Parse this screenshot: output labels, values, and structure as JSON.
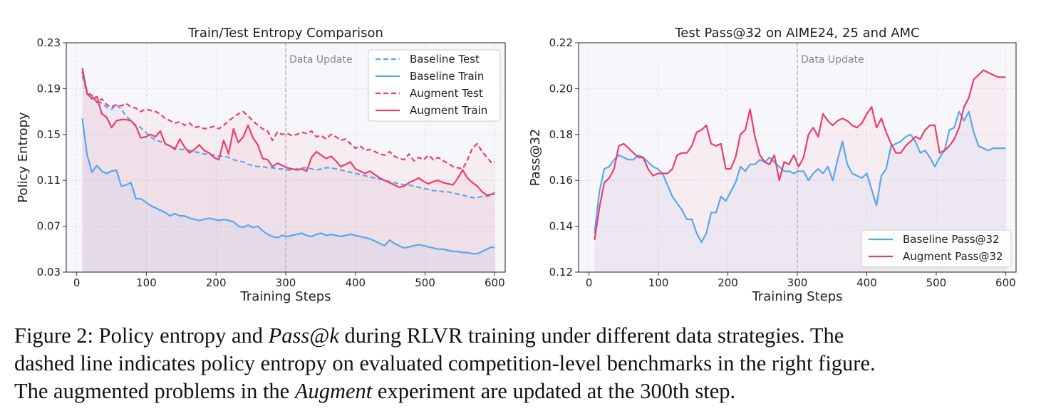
{
  "chart_data": [
    {
      "type": "line",
      "title": "Train/Test Entropy Comparison",
      "xlabel": "Training Steps",
      "ylabel": "Policy Entropy",
      "xlim": [
        -15,
        615
      ],
      "ylim": [
        0.03,
        0.23
      ],
      "xticks": [
        0,
        100,
        200,
        300,
        400,
        500,
        600
      ],
      "yticks": [
        "0.03",
        "0.07",
        "0.11",
        "0.15",
        "0.19",
        "0.23"
      ],
      "grid": true,
      "annotation": {
        "text": "Data Update",
        "x": 300
      },
      "legend_position": "top-right",
      "x": [
        8,
        15,
        22,
        29,
        36,
        43,
        50,
        57,
        64,
        71,
        78,
        85,
        92,
        99,
        106,
        113,
        120,
        127,
        134,
        141,
        148,
        155,
        162,
        169,
        176,
        183,
        190,
        197,
        204,
        211,
        218,
        225,
        232,
        239,
        246,
        253,
        260,
        267,
        274,
        281,
        288,
        295,
        302,
        309,
        316,
        323,
        330,
        337,
        344,
        351,
        358,
        365,
        372,
        379,
        386,
        393,
        400,
        407,
        414,
        421,
        428,
        435,
        442,
        449,
        456,
        463,
        470,
        477,
        484,
        491,
        498,
        505,
        512,
        519,
        526,
        533,
        540,
        547,
        554,
        561,
        568,
        575,
        582,
        589,
        596,
        600
      ],
      "series": [
        {
          "name": "Baseline Test",
          "color": "#5aa7ea",
          "style": "dashed",
          "values": [
            0.201,
            0.185,
            0.182,
            0.18,
            0.177,
            0.174,
            0.172,
            0.176,
            0.172,
            0.166,
            0.162,
            0.158,
            0.156,
            0.152,
            0.148,
            0.145,
            0.144,
            0.142,
            0.14,
            0.138,
            0.137,
            0.137,
            0.136,
            0.135,
            0.134,
            0.133,
            0.133,
            0.132,
            0.131,
            0.131,
            0.13,
            0.128,
            0.127,
            0.126,
            0.124,
            0.123,
            0.122,
            0.122,
            0.121,
            0.121,
            0.12,
            0.12,
            0.119,
            0.119,
            0.12,
            0.121,
            0.121,
            0.12,
            0.119,
            0.12,
            0.121,
            0.121,
            0.12,
            0.119,
            0.118,
            0.117,
            0.116,
            0.115,
            0.114,
            0.113,
            0.112,
            0.111,
            0.11,
            0.109,
            0.108,
            0.107,
            0.106,
            0.106,
            0.105,
            0.104,
            0.103,
            0.102,
            0.101,
            0.101,
            0.1,
            0.1,
            0.099,
            0.098,
            0.097,
            0.096,
            0.095,
            0.095,
            0.096,
            0.096,
            0.097,
            0.1
          ]
        },
        {
          "name": "Baseline Train",
          "color": "#5aa7ea",
          "style": "solid",
          "values": [
            0.164,
            0.132,
            0.117,
            0.123,
            0.118,
            0.116,
            0.118,
            0.119,
            0.105,
            0.106,
            0.108,
            0.094,
            0.094,
            0.091,
            0.088,
            0.086,
            0.084,
            0.082,
            0.079,
            0.081,
            0.079,
            0.079,
            0.077,
            0.076,
            0.075,
            0.076,
            0.077,
            0.076,
            0.075,
            0.076,
            0.075,
            0.074,
            0.07,
            0.069,
            0.071,
            0.069,
            0.07,
            0.066,
            0.063,
            0.061,
            0.06,
            0.062,
            0.061,
            0.062,
            0.063,
            0.064,
            0.062,
            0.061,
            0.063,
            0.064,
            0.062,
            0.063,
            0.062,
            0.061,
            0.062,
            0.063,
            0.062,
            0.061,
            0.06,
            0.059,
            0.057,
            0.055,
            0.053,
            0.058,
            0.055,
            0.053,
            0.051,
            0.052,
            0.053,
            0.054,
            0.053,
            0.052,
            0.051,
            0.05,
            0.05,
            0.049,
            0.048,
            0.048,
            0.047,
            0.047,
            0.046,
            0.046,
            0.048,
            0.05,
            0.052,
            0.051
          ]
        },
        {
          "name": "Augment Test",
          "color": "#ec3e6a",
          "style": "dashed",
          "values": [
            0.205,
            0.187,
            0.184,
            0.178,
            0.181,
            0.176,
            0.174,
            0.176,
            0.175,
            0.177,
            0.174,
            0.173,
            0.17,
            0.172,
            0.171,
            0.17,
            0.168,
            0.164,
            0.162,
            0.16,
            0.161,
            0.158,
            0.16,
            0.156,
            0.157,
            0.155,
            0.156,
            0.157,
            0.155,
            0.158,
            0.162,
            0.165,
            0.168,
            0.17,
            0.166,
            0.162,
            0.158,
            0.155,
            0.153,
            0.145,
            0.152,
            0.15,
            0.151,
            0.149,
            0.15,
            0.152,
            0.151,
            0.153,
            0.148,
            0.149,
            0.146,
            0.15,
            0.148,
            0.145,
            0.146,
            0.142,
            0.138,
            0.14,
            0.136,
            0.137,
            0.135,
            0.133,
            0.132,
            0.135,
            0.131,
            0.129,
            0.128,
            0.133,
            0.127,
            0.13,
            0.128,
            0.132,
            0.128,
            0.13,
            0.127,
            0.125,
            0.122,
            0.121,
            0.12,
            0.128,
            0.138,
            0.142,
            0.135,
            0.13,
            0.125,
            0.126
          ]
        },
        {
          "name": "Augment Train",
          "color": "#ec3e6a",
          "style": "solid",
          "values": [
            0.208,
            0.186,
            0.181,
            0.183,
            0.168,
            0.165,
            0.156,
            0.162,
            0.163,
            0.163,
            0.162,
            0.157,
            0.147,
            0.148,
            0.15,
            0.148,
            0.153,
            0.142,
            0.14,
            0.137,
            0.146,
            0.139,
            0.134,
            0.137,
            0.141,
            0.136,
            0.134,
            0.13,
            0.128,
            0.145,
            0.133,
            0.155,
            0.143,
            0.148,
            0.158,
            0.147,
            0.141,
            0.129,
            0.128,
            0.122,
            0.125,
            0.123,
            0.121,
            0.12,
            0.119,
            0.12,
            0.118,
            0.13,
            0.135,
            0.132,
            0.129,
            0.131,
            0.127,
            0.122,
            0.124,
            0.126,
            0.12,
            0.118,
            0.116,
            0.118,
            0.115,
            0.112,
            0.11,
            0.108,
            0.106,
            0.104,
            0.105,
            0.108,
            0.11,
            0.112,
            0.109,
            0.107,
            0.109,
            0.11,
            0.108,
            0.107,
            0.106,
            0.112,
            0.119,
            0.112,
            0.108,
            0.105,
            0.1,
            0.097,
            0.098,
            0.098
          ]
        }
      ]
    },
    {
      "type": "line",
      "title": "Test Pass@32 on AIME24, 25 and AMC",
      "xlabel": "Training Steps",
      "ylabel": "Pass@32",
      "xlim": [
        -15,
        615
      ],
      "ylim": [
        0.12,
        0.22
      ],
      "xticks": [
        0,
        100,
        200,
        300,
        400,
        500,
        600
      ],
      "yticks": [
        "0.12",
        "0.14",
        "0.16",
        "0.18",
        "0.20",
        "0.22"
      ],
      "grid": true,
      "annotation": {
        "text": "Data Update",
        "x": 300
      },
      "legend_position": "bottom-right",
      "x": [
        8,
        15,
        22,
        29,
        36,
        43,
        50,
        57,
        64,
        71,
        78,
        85,
        92,
        99,
        106,
        113,
        120,
        127,
        134,
        141,
        148,
        155,
        162,
        169,
        176,
        183,
        190,
        197,
        204,
        211,
        218,
        225,
        232,
        239,
        246,
        253,
        260,
        267,
        274,
        281,
        288,
        295,
        302,
        309,
        316,
        323,
        330,
        337,
        344,
        351,
        358,
        365,
        372,
        379,
        386,
        393,
        400,
        407,
        414,
        421,
        428,
        435,
        442,
        449,
        456,
        463,
        470,
        477,
        484,
        491,
        498,
        505,
        512,
        519,
        526,
        533,
        540,
        547,
        554,
        561,
        568,
        575,
        582,
        589,
        596,
        600
      ],
      "series": [
        {
          "name": "Baseline Pass@32",
          "color": "#5aa7ea",
          "style": "solid",
          "values": [
            0.137,
            0.155,
            0.165,
            0.166,
            0.169,
            0.171,
            0.17,
            0.169,
            0.169,
            0.171,
            0.17,
            0.168,
            0.166,
            0.165,
            0.163,
            0.158,
            0.153,
            0.15,
            0.147,
            0.143,
            0.143,
            0.137,
            0.133,
            0.137,
            0.146,
            0.146,
            0.153,
            0.151,
            0.155,
            0.159,
            0.166,
            0.164,
            0.167,
            0.167,
            0.169,
            0.168,
            0.17,
            0.168,
            0.166,
            0.164,
            0.164,
            0.163,
            0.164,
            0.164,
            0.16,
            0.163,
            0.165,
            0.163,
            0.166,
            0.16,
            0.169,
            0.177,
            0.167,
            0.163,
            0.162,
            0.161,
            0.163,
            0.156,
            0.149,
            0.162,
            0.165,
            0.175,
            0.176,
            0.177,
            0.179,
            0.18,
            0.177,
            0.172,
            0.173,
            0.17,
            0.166,
            0.17,
            0.173,
            0.182,
            0.183,
            0.19,
            0.186,
            0.19,
            0.181,
            0.175,
            0.174,
            0.173,
            0.174,
            0.174,
            0.174,
            0.174
          ]
        },
        {
          "name": "Augment Pass@32",
          "color": "#ec3e6a",
          "style": "solid",
          "values": [
            0.134,
            0.148,
            0.159,
            0.161,
            0.165,
            0.175,
            0.176,
            0.174,
            0.172,
            0.17,
            0.17,
            0.165,
            0.162,
            0.163,
            0.163,
            0.163,
            0.165,
            0.171,
            0.172,
            0.172,
            0.175,
            0.181,
            0.182,
            0.184,
            0.176,
            0.175,
            0.176,
            0.165,
            0.165,
            0.17,
            0.18,
            0.182,
            0.191,
            0.179,
            0.171,
            0.168,
            0.167,
            0.171,
            0.16,
            0.168,
            0.167,
            0.171,
            0.166,
            0.17,
            0.18,
            0.183,
            0.179,
            0.189,
            0.186,
            0.184,
            0.186,
            0.187,
            0.186,
            0.184,
            0.183,
            0.185,
            0.189,
            0.192,
            0.183,
            0.187,
            0.181,
            0.176,
            0.172,
            0.172,
            0.175,
            0.177,
            0.179,
            0.178,
            0.182,
            0.184,
            0.184,
            0.172,
            0.173,
            0.175,
            0.178,
            0.183,
            0.192,
            0.196,
            0.204,
            0.206,
            0.208,
            0.207,
            0.206,
            0.205,
            0.205,
            0.205
          ]
        }
      ]
    }
  ],
  "caption": {
    "line1_a": "Figure 2: Policy entropy and ",
    "line1_em": "Pass@k",
    "line1_b": " during RLVR training under different data strategies.  The",
    "line2": "dashed line indicates policy entropy on evaluated competition-level benchmarks in the right figure.",
    "line3_a": "The augmented problems in the ",
    "line3_em": "Augment",
    "line3_b": " experiment are updated at the 300th step."
  }
}
